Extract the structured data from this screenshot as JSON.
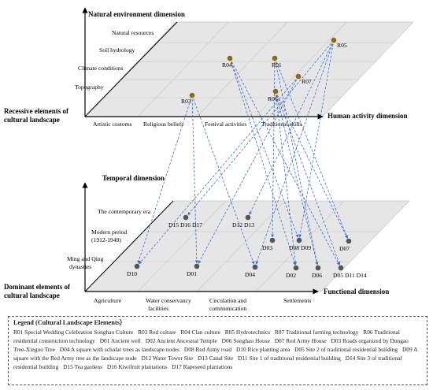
{
  "upper": {
    "y_title": "Natural environment dimension",
    "x_title": "Human activity dimension",
    "left_title": [
      "Recessive elements of",
      "cultural landscape"
    ],
    "y_ticks": [
      "Natural resources",
      "Soil hydrology",
      "Climate conditions",
      "Topography"
    ],
    "x_ticks": [
      "Artistic customs",
      "Religious beliefs",
      "Festival activities",
      "Traditional skills"
    ],
    "nodes": [
      {
        "id": "R03",
        "label": "R03"
      },
      {
        "id": "R04",
        "label": "R04"
      },
      {
        "id": "R01",
        "label": "R01"
      },
      {
        "id": "R05",
        "label": "R05"
      },
      {
        "id": "R07",
        "label": "R07"
      },
      {
        "id": "R06",
        "label": "R06"
      }
    ]
  },
  "lower": {
    "y_title": "Temporal dimension",
    "x_title": "Functional dimension",
    "left_title": [
      "Dominant elements of",
      "cultural landscape"
    ],
    "y_ticks": [
      [
        "The contemporary era"
      ],
      [
        "Modern period",
        "(1912-1949)"
      ],
      [
        "Ming and Qing",
        "dynasties"
      ]
    ],
    "x_ticks": [
      [
        "Agriculture"
      ],
      [
        "Water conservancy",
        "facilities"
      ],
      [
        "Circulation and",
        "communication"
      ],
      [
        "Settlements"
      ]
    ],
    "nodes": [
      {
        "id": "D15",
        "label": "D15 D16 D17"
      },
      {
        "id": "D12",
        "label": "D12 D13"
      },
      {
        "id": "D03",
        "label": "D03"
      },
      {
        "id": "D08",
        "label": "D08 D09"
      },
      {
        "id": "D07",
        "label": "D07"
      },
      {
        "id": "D10",
        "label": "D10"
      },
      {
        "id": "D01",
        "label": "D01"
      },
      {
        "id": "D04",
        "label": "D04"
      },
      {
        "id": "D02",
        "label": "D02"
      },
      {
        "id": "D06",
        "label": "D06"
      },
      {
        "id": "D05",
        "label": "D05 D11 D14"
      }
    ]
  },
  "links": [
    [
      "R03",
      "D01"
    ],
    [
      "R03",
      "D10"
    ],
    [
      "R03",
      "D04"
    ],
    [
      "R04",
      "D02"
    ],
    [
      "R04",
      "D08"
    ],
    [
      "R04",
      "D05"
    ],
    [
      "R01",
      "D07"
    ],
    [
      "R01",
      "D06"
    ],
    [
      "R01",
      "D03"
    ],
    [
      "R05",
      "D15"
    ],
    [
      "R05",
      "D12"
    ],
    [
      "R05",
      "D08"
    ],
    [
      "R05",
      "D04"
    ],
    [
      "R07",
      "D10"
    ],
    [
      "R07",
      "D01"
    ],
    [
      "R06",
      "D02"
    ],
    [
      "R06",
      "D06"
    ],
    [
      "R06",
      "D05"
    ],
    [
      "R06",
      "D07"
    ]
  ],
  "colors": {
    "r_node": "#8b6a10",
    "d_node": "#555555",
    "link": "#3a6fd0",
    "plane": "#e6e6e6",
    "grid": "#c8c8c8"
  },
  "legend": {
    "title": "Legend (Cultural Landscape Elements）",
    "items": [
      "R01 Special Wedding Celebration Songhao Culture",
      "R03 Red culture",
      "R04 Clan culture",
      "R05 Hydrotechnics",
      "R07 Traditional farming technology",
      "R06 Traditional residential construction technology",
      "D01 Ancient well",
      "D02 Ancient Ancestral Temple",
      "D06 Songhao House",
      "D07 Red Army House",
      "D03 Roads organized by Dungao Tree-Xinguo Tree",
      "D04 A square with scholar trees as landscape nodes",
      "D08 Red Army road",
      "D10 Rice planting area",
      "D05 Site 2 of traditional residential building",
      "D09 A square with the Red Army tree as the landscape node",
      "D12 Water Tower Site",
      "D13 Canal Site",
      "D11 Site 1 of traditional residential building",
      "D14 Site 3 of traditional residential building",
      "D15 Tea gardens",
      "D16 Kiwifruit plantations",
      "D17 Rapeseed plantations"
    ]
  }
}
